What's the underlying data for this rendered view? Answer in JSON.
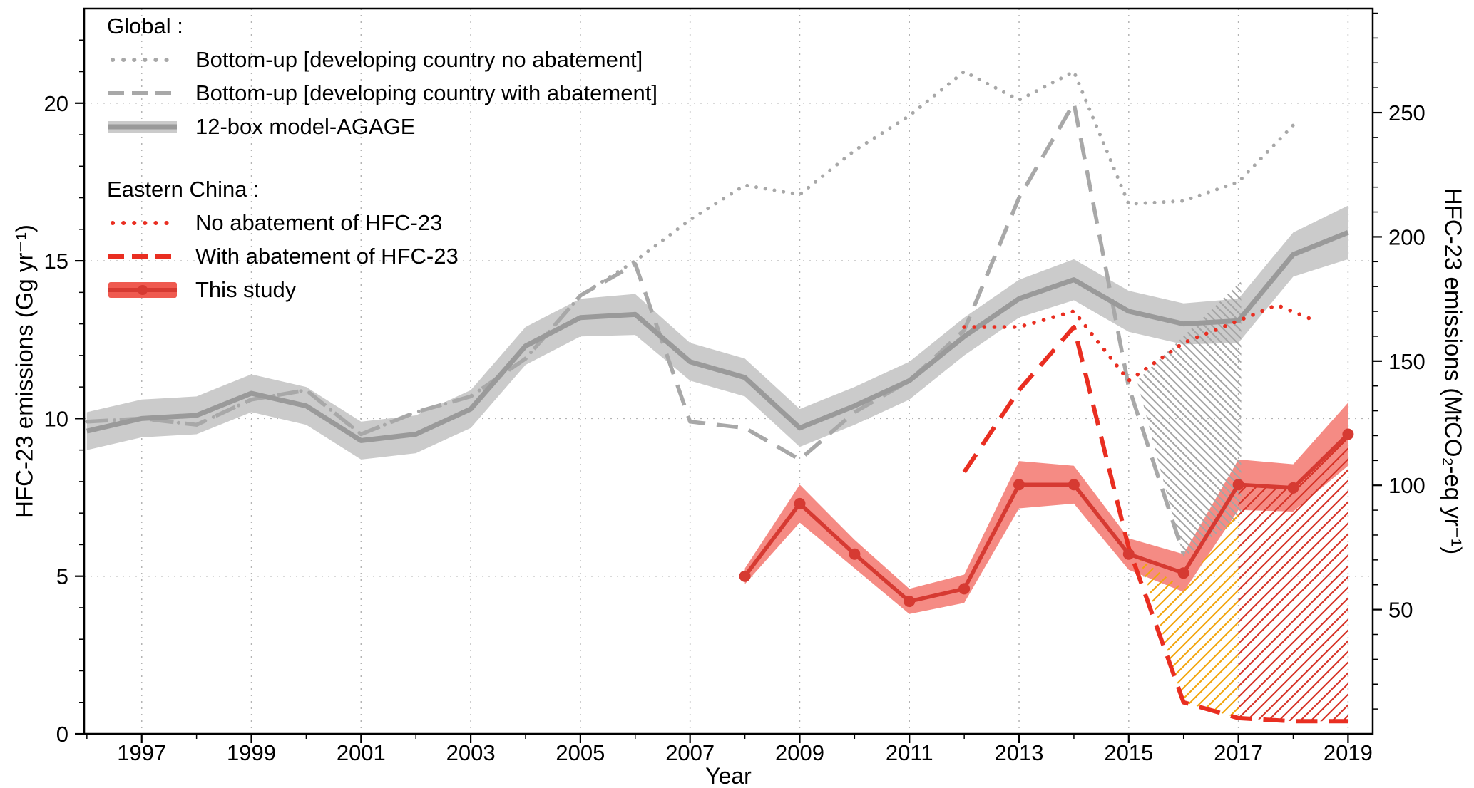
{
  "chart_data": {
    "type": "line",
    "title": "",
    "axes": {
      "x_label": "Year",
      "y_left_label": "HFC-23 emissions (Gg yr⁻¹)",
      "y_right_label": "HFC-23 emissions (MtCO₂-eq yr⁻¹)",
      "x_range": [
        1995.95,
        2019.45
      ],
      "y_left_range": [
        0,
        23
      ],
      "right_per_left": 12.69,
      "x_major_ticks": [
        1997,
        1999,
        2001,
        2003,
        2005,
        2007,
        2009,
        2011,
        2013,
        2015,
        2017,
        2019
      ],
      "y_left_major_ticks": [
        0,
        5,
        10,
        15,
        20
      ],
      "y_right_major_ticks": [
        50,
        100,
        150,
        200,
        250
      ],
      "grid": "dotted"
    },
    "colors": {
      "axis": "#000000",
      "grid": "#b3b3b3",
      "gray_line": "#9a9a9a",
      "gray_band": "#cbcbcb",
      "gray_dotted": "#a8a8a8",
      "red_line": "#d63a32",
      "red_band": "#f58b84",
      "red_band_legend": "#ef5a50",
      "red_bright": "#e92e21",
      "gray_hatch": "#a5a5a5",
      "orange_hatch": "#f2a50c",
      "red_hatch": "#d63226"
    },
    "series": [
      {
        "id": "global-bottom-up-no-abatement",
        "label": "Bottom-up [developing country no abatement]",
        "group": "Global",
        "style": "dotted",
        "color": "#a8a8a8",
        "width": 5,
        "x": [
          1996,
          1997,
          1998,
          1999,
          2000,
          2001,
          2002,
          2003,
          2004,
          2005,
          2006,
          2007,
          2008,
          2009,
          2010,
          2011,
          2012,
          2013,
          2014,
          2015,
          2016,
          2017,
          2018
        ],
        "y": [
          9.9,
          10.0,
          9.8,
          10.6,
          10.9,
          9.5,
          10.2,
          10.7,
          11.9,
          13.9,
          15.0,
          16.3,
          17.4,
          17.1,
          18.5,
          19.6,
          21.0,
          20.1,
          21.0,
          16.8,
          16.9,
          17.5,
          19.3
        ]
      },
      {
        "id": "global-bottom-up-with-abatement",
        "label": "Bottom-up [developing country with abatement]",
        "group": "Global",
        "style": "dashed",
        "color": "#a8a8a8",
        "width": 5.5,
        "x": [
          1996,
          1997,
          1998,
          1999,
          2000,
          2001,
          2002,
          2003,
          2004,
          2005,
          2006,
          2007,
          2008,
          2009,
          2010,
          2011,
          2012,
          2013,
          2014,
          2015,
          2016
        ],
        "y": [
          9.9,
          10.0,
          9.8,
          10.6,
          10.9,
          9.5,
          10.2,
          10.7,
          11.9,
          13.9,
          14.9,
          9.9,
          9.7,
          8.7,
          10.2,
          11.2,
          12.8,
          17.0,
          20.0,
          11.0,
          5.7
        ]
      },
      {
        "id": "global-12box-model-agage",
        "label": "12-box model-AGAGE",
        "group": "Global",
        "style": "solid",
        "color": "#9a9a9a",
        "width": 7,
        "band_color": "#cbcbcb",
        "x": [
          1996,
          1997,
          1998,
          1999,
          2000,
          2001,
          2002,
          2003,
          2004,
          2005,
          2006,
          2007,
          2008,
          2009,
          2010,
          2011,
          2012,
          2013,
          2014,
          2015,
          2016,
          2017,
          2018,
          2019
        ],
        "y": [
          9.6,
          10.0,
          10.1,
          10.8,
          10.4,
          9.3,
          9.5,
          10.3,
          12.3,
          13.2,
          13.3,
          11.8,
          11.3,
          9.7,
          10.4,
          11.2,
          12.6,
          13.8,
          14.4,
          13.4,
          13.0,
          13.1,
          15.2,
          15.9
        ],
        "band_half": [
          0.6,
          0.6,
          0.6,
          0.6,
          0.6,
          0.6,
          0.6,
          0.6,
          0.6,
          0.6,
          0.65,
          0.6,
          0.6,
          0.6,
          0.6,
          0.6,
          0.6,
          0.6,
          0.65,
          0.65,
          0.65,
          0.7,
          0.7,
          0.85
        ]
      },
      {
        "id": "eastern-china-no-abatement",
        "label": "No abatement of HFC-23",
        "group": "Eastern China",
        "style": "dotted",
        "color": "#e92e21",
        "width": 5.5,
        "x": [
          2012,
          2013,
          2014,
          2015,
          2016,
          2017,
          2017.7,
          2018.4
        ],
        "y": [
          12.9,
          12.9,
          13.4,
          11.2,
          12.4,
          13.1,
          13.6,
          13.1
        ]
      },
      {
        "id": "eastern-china-with-abatement",
        "label": "With abatement of HFC-23",
        "group": "Eastern China",
        "style": "dashed",
        "color": "#e92e21",
        "width": 6,
        "x": [
          2012,
          2013,
          2014,
          2015,
          2016,
          2017,
          2018,
          2019
        ],
        "y": [
          8.3,
          10.9,
          12.9,
          5.9,
          1.0,
          0.5,
          0.4,
          0.4
        ]
      },
      {
        "id": "eastern-china-this-study",
        "label": "This study",
        "group": "Eastern China",
        "style": "solid",
        "color": "#d63a32",
        "width": 5.5,
        "markers": true,
        "band_color": "#f58b84",
        "x": [
          2008,
          2009,
          2010,
          2011,
          2012,
          2013,
          2014,
          2015,
          2016,
          2017,
          2018,
          2019
        ],
        "y": [
          5.0,
          7.3,
          5.7,
          4.2,
          4.6,
          7.9,
          7.9,
          5.7,
          5.1,
          7.9,
          7.8,
          9.5
        ],
        "band_half": [
          0.25,
          0.6,
          0.45,
          0.4,
          0.45,
          0.75,
          0.6,
          0.5,
          0.6,
          0.8,
          0.75,
          1.0
        ]
      }
    ],
    "hatch_regions": [
      {
        "id": "global-abated-emissions-hatch",
        "pattern": "backslash",
        "color": "#a5a5a5",
        "points": [
          [
            2015.15,
            11.2
          ],
          [
            2017.05,
            14.35
          ],
          [
            2017.05,
            6.9
          ],
          [
            2016.0,
            5.6
          ]
        ]
      },
      {
        "id": "china-abated-emissions-hatch-orange",
        "pattern": "slash",
        "color": "#f2a50c",
        "points": [
          [
            2015.2,
            5.55
          ],
          [
            2016,
            4.6
          ],
          [
            2017,
            7.1
          ],
          [
            2017,
            0.5
          ],
          [
            2016,
            1.0
          ]
        ]
      },
      {
        "id": "china-abated-emissions-hatch-red",
        "pattern": "slash",
        "color": "#d63226",
        "points": [
          [
            2017,
            7.9
          ],
          [
            2018,
            7.8
          ],
          [
            2019,
            9.5
          ],
          [
            2019,
            0.4
          ],
          [
            2018,
            0.4
          ],
          [
            2017,
            0.5
          ]
        ]
      }
    ],
    "legend": {
      "global_header": "Global :",
      "china_header": "Eastern China :",
      "items": [
        {
          "label": "Bottom-up [developing country no abatement]"
        },
        {
          "label": "Bottom-up [developing country with abatement]"
        },
        {
          "label": "12-box model-AGAGE"
        },
        {
          "label": "No abatement of HFC-23"
        },
        {
          "label": "With abatement of HFC-23"
        },
        {
          "label": "This study"
        }
      ]
    }
  }
}
